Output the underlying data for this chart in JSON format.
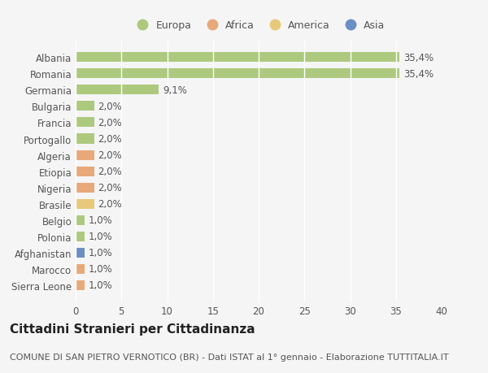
{
  "countries": [
    "Albania",
    "Romania",
    "Germania",
    "Bulgaria",
    "Francia",
    "Portogallo",
    "Algeria",
    "Etiopia",
    "Nigeria",
    "Brasile",
    "Belgio",
    "Polonia",
    "Afghanistan",
    "Marocco",
    "Sierra Leone"
  ],
  "values": [
    35.4,
    35.4,
    9.1,
    2.0,
    2.0,
    2.0,
    2.0,
    2.0,
    2.0,
    2.0,
    1.0,
    1.0,
    1.0,
    1.0,
    1.0
  ],
  "labels": [
    "35,4%",
    "35,4%",
    "9,1%",
    "2,0%",
    "2,0%",
    "2,0%",
    "2,0%",
    "2,0%",
    "2,0%",
    "2,0%",
    "1,0%",
    "1,0%",
    "1,0%",
    "1,0%",
    "1,0%"
  ],
  "continents": [
    "Europa",
    "Europa",
    "Europa",
    "Europa",
    "Europa",
    "Europa",
    "Africa",
    "Africa",
    "Africa",
    "America",
    "Europa",
    "Europa",
    "Asia",
    "Africa",
    "Africa"
  ],
  "colors": {
    "Europa": "#adc97e",
    "Africa": "#e8a97a",
    "America": "#e8c87a",
    "Asia": "#6b8fc4"
  },
  "legend_order": [
    "Europa",
    "Africa",
    "America",
    "Asia"
  ],
  "title": "Cittadini Stranieri per Cittadinanza",
  "subtitle": "COMUNE DI SAN PIETRO VERNOTICO (BR) - Dati ISTAT al 1° gennaio - Elaborazione TUTTITALIA.IT",
  "xlim": [
    0,
    40
  ],
  "xticks": [
    0,
    5,
    10,
    15,
    20,
    25,
    30,
    35,
    40
  ],
  "background_color": "#f5f5f5",
  "plot_bg_color": "#f5f5f5",
  "grid_color": "#ffffff",
  "bar_height": 0.6,
  "title_fontsize": 11,
  "subtitle_fontsize": 8,
  "label_fontsize": 8.5,
  "tick_fontsize": 8.5,
  "legend_fontsize": 9
}
